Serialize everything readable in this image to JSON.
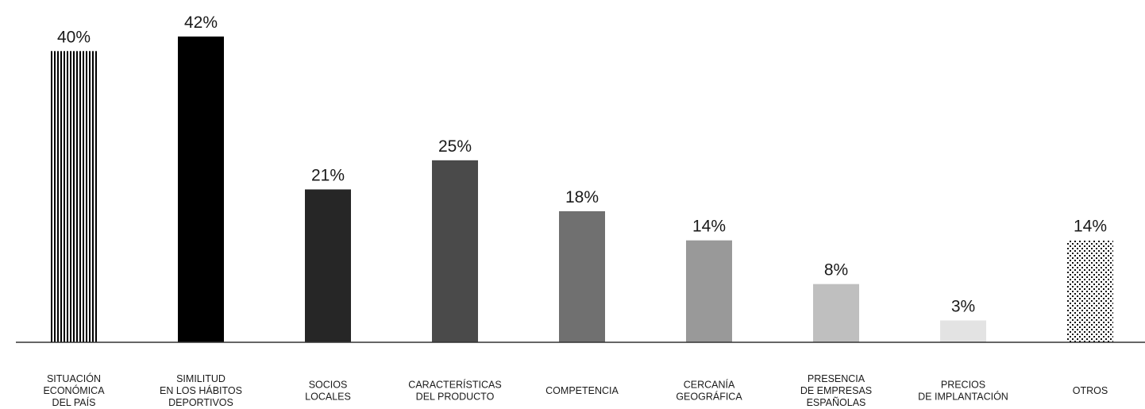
{
  "chart_data": {
    "type": "bar",
    "title": "",
    "xlabel": "",
    "ylabel": "",
    "ylim": [
      0,
      42
    ],
    "grid": false,
    "categories": [
      [
        "SITUACIÓN",
        "ECONÓMICA",
        "DEL PAÍS"
      ],
      [
        "SIMILITUD",
        "EN LOS HÁBITOS",
        "DEPORTIVOS"
      ],
      [
        "SOCIOS",
        "LOCALES"
      ],
      [
        "CARACTERÍSTICAS",
        "DEL PRODUCTO"
      ],
      [
        "COMPETENCIA"
      ],
      [
        "CERCANÍA",
        "GEOGRÁFICA"
      ],
      [
        "PRESENCIA",
        "DE EMPRESAS",
        "ESPAÑOLAS"
      ],
      [
        "PRECIOS",
        "DE IMPLANTACIÓN"
      ],
      [
        "OTROS"
      ]
    ],
    "values": [
      40,
      42,
      21,
      25,
      18,
      14,
      8,
      3,
      14
    ],
    "value_labels": [
      "40%",
      "42%",
      "21%",
      "25%",
      "18%",
      "14%",
      "8%",
      "3%",
      "14%"
    ],
    "fills": [
      "stripes",
      "#000000",
      "#262626",
      "#4a4a4a",
      "#707070",
      "#999999",
      "#bfbfbf",
      "#e3e3e3",
      "dots"
    ]
  }
}
